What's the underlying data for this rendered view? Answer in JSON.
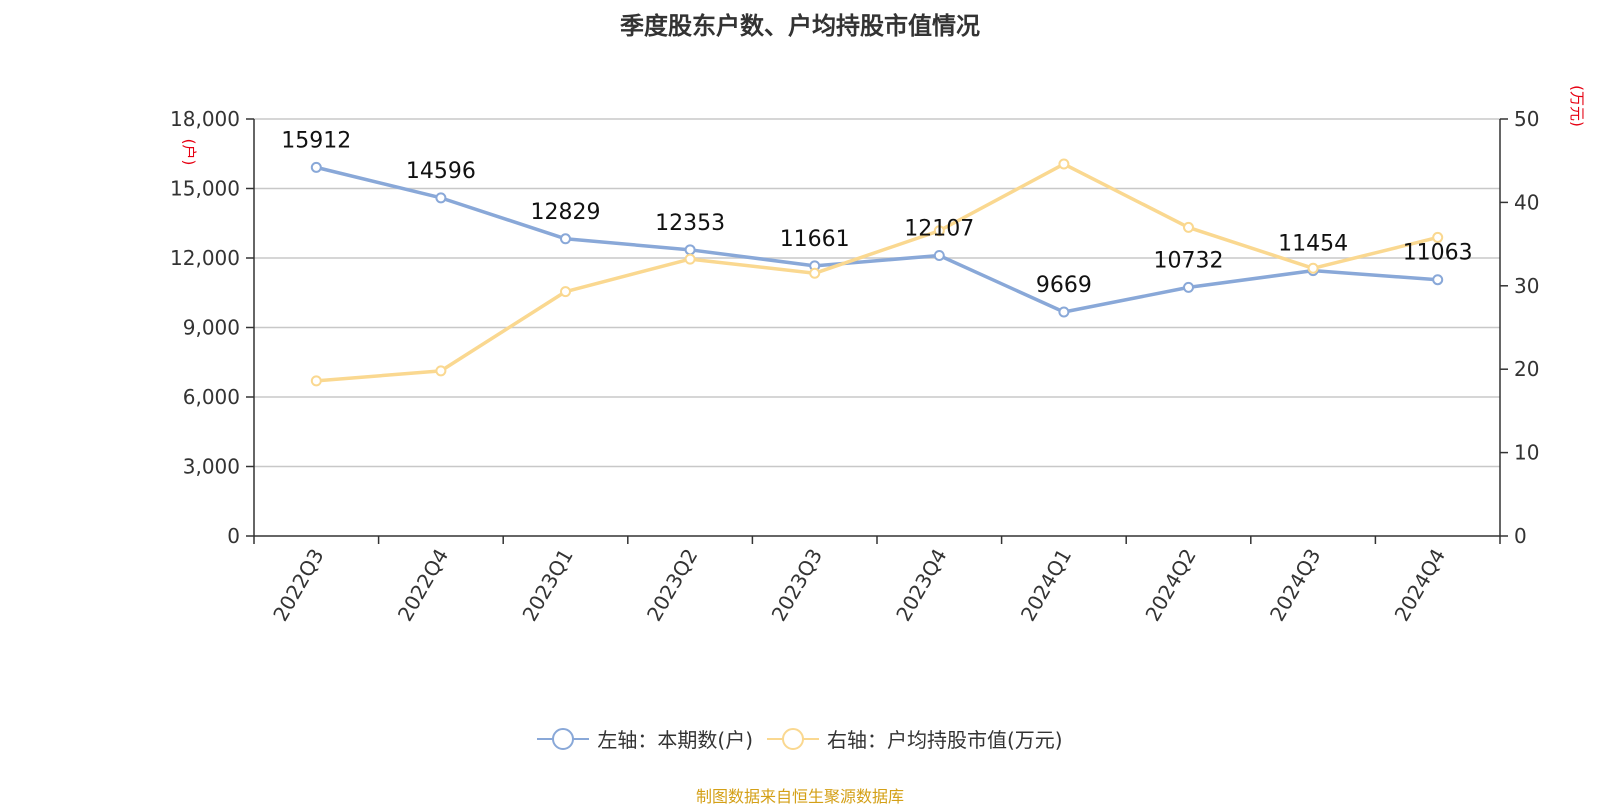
{
  "chart_data": {
    "type": "line",
    "title": "季度股东户数、户均持股市值情况",
    "categories": [
      "2022Q3",
      "2022Q4",
      "2023Q1",
      "2023Q2",
      "2023Q3",
      "2023Q4",
      "2024Q1",
      "2024Q2",
      "2024Q3",
      "2024Q4"
    ],
    "left_axis": {
      "unit": "(户)",
      "ylim": [
        0,
        18000
      ],
      "ticks": [
        0,
        3000,
        6000,
        9000,
        12000,
        15000,
        18000
      ],
      "tick_labels": [
        "0",
        "3,000",
        "6,000",
        "9,000",
        "12,000",
        "15,000",
        "18,000"
      ]
    },
    "right_axis": {
      "unit": "(万元)",
      "ylim": [
        0,
        50
      ],
      "ticks": [
        0,
        10,
        20,
        30,
        40,
        50
      ],
      "tick_labels": [
        "0",
        "10",
        "20",
        "30",
        "40",
        "50"
      ]
    },
    "series": [
      {
        "name": "左轴：本期数(户)",
        "axis": "left",
        "color": "#89a8d8",
        "values": [
          15912,
          14596,
          12829,
          12353,
          11661,
          12107,
          9669,
          10732,
          11454,
          11063
        ],
        "data_labels": [
          "15912",
          "14596",
          "12829",
          "12353",
          "11661",
          "12107",
          "9669",
          "10732",
          "11454",
          "11063"
        ]
      },
      {
        "name": "右轴：户均持股市值(万元)",
        "axis": "right",
        "color": "#fad890",
        "values": [
          18.6,
          19.8,
          29.3,
          33.2,
          31.5,
          36.6,
          44.6,
          37.0,
          32.1,
          35.8
        ]
      }
    ],
    "grid": true,
    "legend_position": "bottom"
  },
  "source_text": "制图数据来自恒生聚源数据库"
}
